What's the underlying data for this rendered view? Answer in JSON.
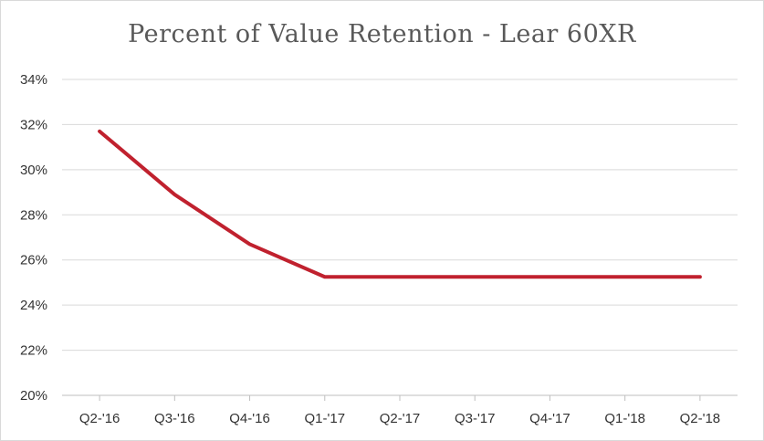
{
  "chart_data": {
    "type": "line",
    "title": "Percent of Value Retention - Lear 60XR",
    "xlabel": "",
    "ylabel": "",
    "categories": [
      "Q2-'16",
      "Q3-'16",
      "Q4-'16",
      "Q1-'17",
      "Q2-'17",
      "Q3-'17",
      "Q4-'17",
      "Q1-'18",
      "Q2-'18"
    ],
    "series": [
      {
        "values": [
          31.7,
          28.9,
          26.7,
          25.25,
          25.25,
          25.25,
          25.25,
          25.25,
          25.25
        ]
      }
    ],
    "ylim": [
      20,
      34
    ],
    "yticks": [
      "20%",
      "22%",
      "24%",
      "26%",
      "28%",
      "30%",
      "32%",
      "34%"
    ],
    "grid": true,
    "colors": {
      "line": "#c0212e",
      "grid": "#d9d9d9",
      "axis": "#bfbfbf"
    }
  }
}
